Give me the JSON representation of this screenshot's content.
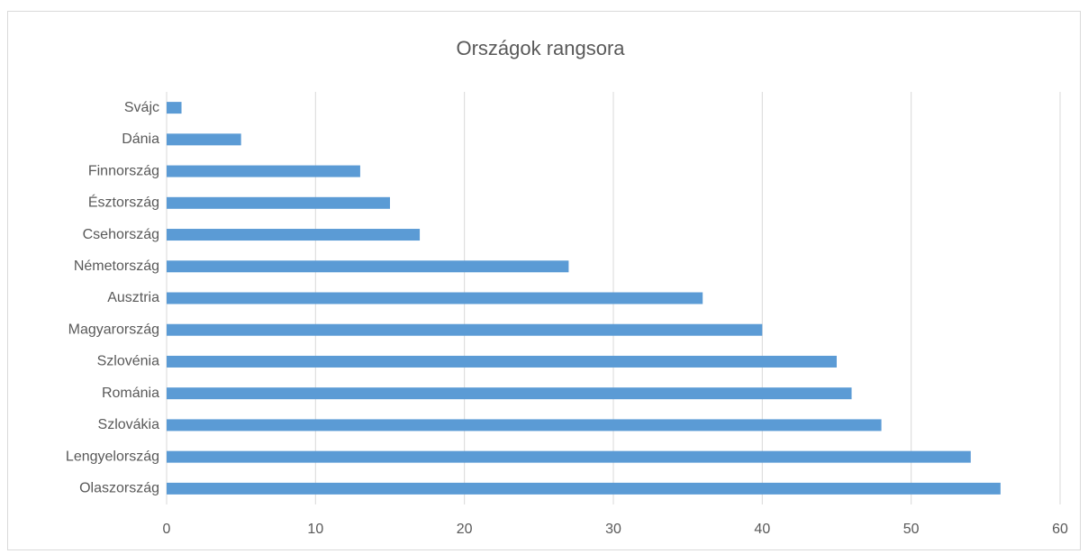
{
  "chart_data": {
    "type": "bar",
    "orientation": "horizontal",
    "title": "Országok rangsora",
    "categories": [
      "Svájc",
      "Dánia",
      "Finnország",
      "Észtország",
      "Csehország",
      "Németország",
      "Ausztria",
      "Magyarország",
      "Szlovénia",
      "Románia",
      "Szlovákia",
      "Lengyelország",
      "Olaszország"
    ],
    "values": [
      1,
      5,
      13,
      15,
      17,
      27,
      36,
      40,
      45,
      46,
      48,
      54,
      56
    ],
    "color": "#5b9bd5",
    "xlim": [
      0,
      60
    ],
    "xticks": [
      0,
      10,
      20,
      30,
      40,
      50,
      60
    ],
    "grid": true
  }
}
